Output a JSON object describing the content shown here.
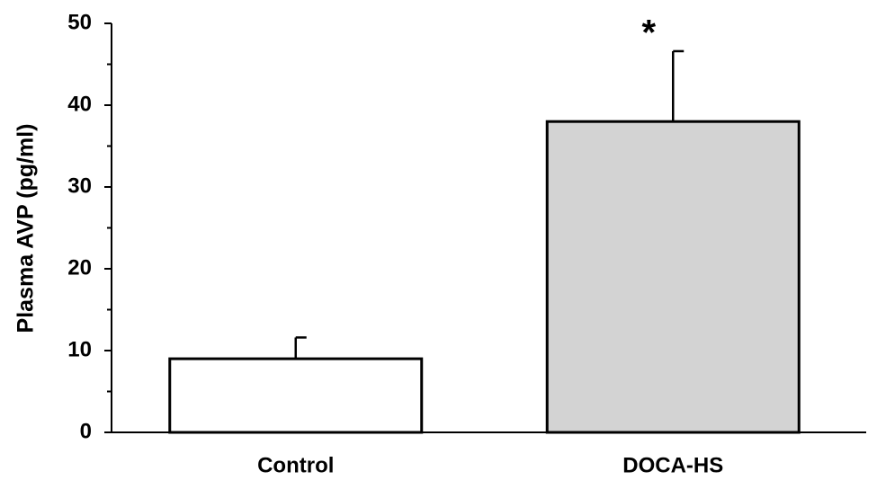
{
  "chart_data": {
    "type": "bar",
    "y_label": "Plasma AVP (pg/ml)",
    "categories": [
      "Control",
      "DOCA-HS"
    ],
    "values": [
      9.0,
      38.0
    ],
    "errors": [
      2.6,
      8.6
    ],
    "colors": [
      "#ffffff",
      "#d3d3d3"
    ],
    "annotations": [
      null,
      "*"
    ],
    "ylim": [
      0,
      50
    ],
    "yticks": [
      0,
      10,
      20,
      30,
      40,
      50
    ],
    "yminorticks": [
      5,
      15,
      25,
      35,
      45
    ],
    "grid": false
  }
}
